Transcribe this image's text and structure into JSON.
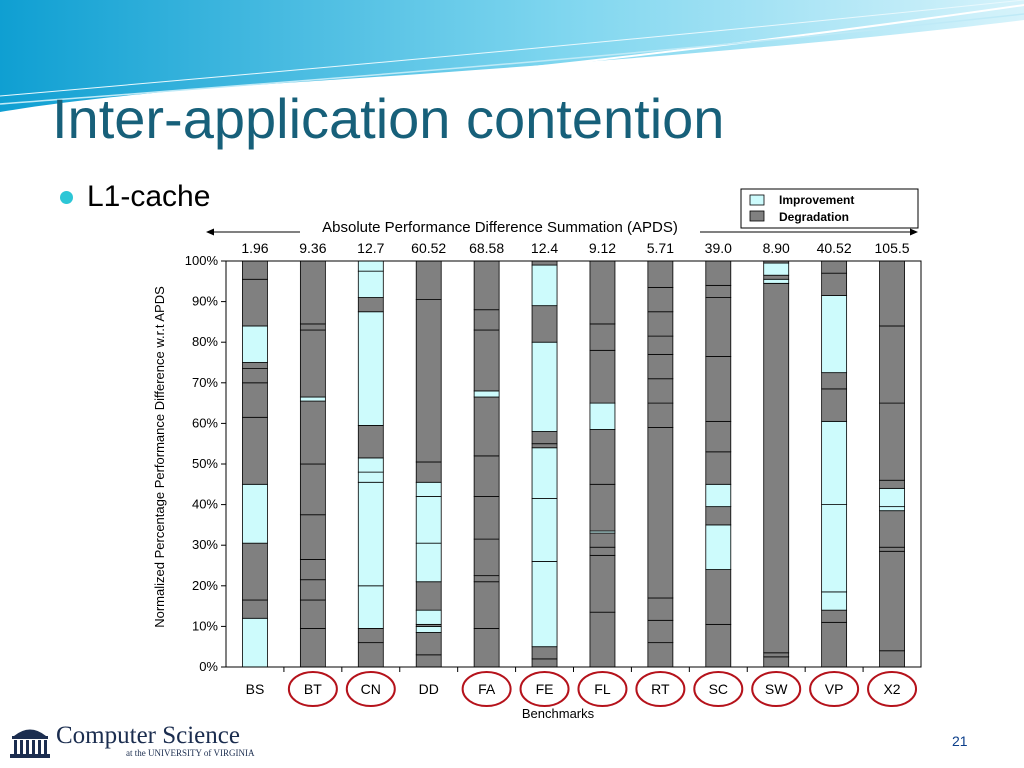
{
  "slide": {
    "title": "Inter-application contention",
    "bullet": "L1-cache",
    "page_number": "21",
    "logo": {
      "name": "Computer Science",
      "subtitle": "at the UNIVERSITY of VIRGINIA",
      "icon": "rotunda-icon"
    }
  },
  "colors": {
    "title": "#17607a",
    "bullet": "#2cc6d6",
    "improvement": "#cdfbfc",
    "degradation": "#808080",
    "circle": "#b5121b"
  },
  "chart_data": {
    "type": "bar",
    "stacked": true,
    "categories": [
      "BS",
      "BT",
      "CN",
      "DD",
      "FA",
      "FE",
      "FL",
      "RT",
      "SC",
      "SW",
      "VP",
      "X2"
    ],
    "circled_categories": [
      "BT",
      "CN",
      "FA",
      "FE",
      "FL",
      "RT",
      "SC",
      "SW",
      "VP",
      "X2"
    ],
    "xlabel": "Benchmarks",
    "ylabel": "Normalized Percentage  Performance Difference w.r.t APDS",
    "yticks": [
      "0%",
      "10%",
      "20%",
      "30%",
      "40%",
      "50%",
      "60%",
      "70%",
      "80%",
      "90%",
      "100%"
    ],
    "ylim": [
      0,
      100
    ],
    "apds_header": "Absolute Performance Difference Summation (APDS)",
    "apds_values": [
      "1.96",
      "9.36",
      "12.7",
      "60.52",
      "68.58",
      "12.4",
      "9.12",
      "5.71",
      "39.0",
      "8.90",
      "40.52",
      "105.5"
    ],
    "legend": [
      {
        "name": "Improvement",
        "color": "#cdfbfc"
      },
      {
        "name": "Degradation",
        "color": "#808080"
      }
    ],
    "legend_position": "top-right",
    "grid": false,
    "bars": [
      {
        "category": "BS",
        "segments": [
          [
            0,
            12,
            "Improvement"
          ],
          [
            12,
            16.5,
            "Degradation"
          ],
          [
            16.5,
            30.5,
            "Degradation"
          ],
          [
            30.5,
            45,
            "Improvement"
          ],
          [
            45,
            61.5,
            "Degradation"
          ],
          [
            61.5,
            70,
            "Degradation"
          ],
          [
            70,
            73.5,
            "Degradation"
          ],
          [
            73.5,
            75,
            "Degradation"
          ],
          [
            75,
            84,
            "Improvement"
          ],
          [
            84,
            95.5,
            "Degradation"
          ],
          [
            95.5,
            100,
            "Degradation"
          ]
        ]
      },
      {
        "category": "BT",
        "segments": [
          [
            0,
            9.5,
            "Degradation"
          ],
          [
            9.5,
            16.5,
            "Degradation"
          ],
          [
            16.5,
            21.5,
            "Degradation"
          ],
          [
            21.5,
            26.5,
            "Degradation"
          ],
          [
            26.5,
            37.5,
            "Degradation"
          ],
          [
            37.5,
            50,
            "Degradation"
          ],
          [
            50,
            65.5,
            "Degradation"
          ],
          [
            65.5,
            66.5,
            "Improvement"
          ],
          [
            66.5,
            83,
            "Degradation"
          ],
          [
            83,
            84.5,
            "Degradation"
          ],
          [
            84.5,
            100,
            "Degradation"
          ]
        ]
      },
      {
        "category": "CN",
        "segments": [
          [
            0,
            6,
            "Degradation"
          ],
          [
            6,
            9.5,
            "Degradation"
          ],
          [
            9.5,
            20,
            "Improvement"
          ],
          [
            20,
            45.5,
            "Improvement"
          ],
          [
            45.5,
            48,
            "Improvement"
          ],
          [
            48,
            51.5,
            "Improvement"
          ],
          [
            51.5,
            59.5,
            "Degradation"
          ],
          [
            59.5,
            87.5,
            "Improvement"
          ],
          [
            87.5,
            91,
            "Degradation"
          ],
          [
            91,
            97.5,
            "Improvement"
          ],
          [
            97.5,
            100,
            "Improvement"
          ]
        ]
      },
      {
        "category": "DD",
        "segments": [
          [
            0,
            3,
            "Degradation"
          ],
          [
            3,
            8.5,
            "Degradation"
          ],
          [
            8.5,
            10,
            "Improvement"
          ],
          [
            10,
            10.5,
            "Degradation"
          ],
          [
            10.5,
            14,
            "Improvement"
          ],
          [
            14,
            21,
            "Degradation"
          ],
          [
            21,
            30.5,
            "Improvement"
          ],
          [
            30.5,
            42,
            "Improvement"
          ],
          [
            42,
            45.5,
            "Improvement"
          ],
          [
            45.5,
            50.5,
            "Degradation"
          ],
          [
            50.5,
            90.5,
            "Degradation"
          ],
          [
            90.5,
            100,
            "Degradation"
          ]
        ]
      },
      {
        "category": "FA",
        "segments": [
          [
            0,
            9.5,
            "Degradation"
          ],
          [
            9.5,
            21,
            "Degradation"
          ],
          [
            21,
            22.5,
            "Degradation"
          ],
          [
            22.5,
            31.5,
            "Degradation"
          ],
          [
            31.5,
            42,
            "Degradation"
          ],
          [
            42,
            52,
            "Degradation"
          ],
          [
            52,
            66.5,
            "Degradation"
          ],
          [
            66.5,
            68,
            "Improvement"
          ],
          [
            68,
            83,
            "Degradation"
          ],
          [
            83,
            88,
            "Degradation"
          ],
          [
            88,
            100,
            "Degradation"
          ]
        ]
      },
      {
        "category": "FE",
        "segments": [
          [
            0,
            2,
            "Degradation"
          ],
          [
            2,
            5,
            "Degradation"
          ],
          [
            5,
            26,
            "Improvement"
          ],
          [
            26,
            41.5,
            "Improvement"
          ],
          [
            41.5,
            54,
            "Improvement"
          ],
          [
            54,
            55,
            "Degradation"
          ],
          [
            55,
            58,
            "Degradation"
          ],
          [
            58,
            80,
            "Improvement"
          ],
          [
            80,
            89,
            "Degradation"
          ],
          [
            89,
            99,
            "Improvement"
          ],
          [
            99,
            100,
            "Degradation"
          ]
        ]
      },
      {
        "category": "FL",
        "segments": [
          [
            0,
            13.5,
            "Degradation"
          ],
          [
            13.5,
            27.5,
            "Degradation"
          ],
          [
            27.5,
            29.5,
            "Degradation"
          ],
          [
            29.5,
            33,
            "Degradation"
          ],
          [
            33,
            33.5,
            "Improvement"
          ],
          [
            33.5,
            45,
            "Degradation"
          ],
          [
            45,
            58.5,
            "Degradation"
          ],
          [
            58.5,
            65,
            "Improvement"
          ],
          [
            65,
            78,
            "Degradation"
          ],
          [
            78,
            84.5,
            "Degradation"
          ],
          [
            84.5,
            100,
            "Degradation"
          ]
        ]
      },
      {
        "category": "RT",
        "segments": [
          [
            0,
            6,
            "Degradation"
          ],
          [
            6,
            11.5,
            "Degradation"
          ],
          [
            11.5,
            17,
            "Degradation"
          ],
          [
            17,
            59,
            "Degradation"
          ],
          [
            59,
            65,
            "Degradation"
          ],
          [
            65,
            71,
            "Degradation"
          ],
          [
            71,
            77,
            "Degradation"
          ],
          [
            77,
            81.5,
            "Degradation"
          ],
          [
            81.5,
            87.5,
            "Degradation"
          ],
          [
            87.5,
            93.5,
            "Degradation"
          ],
          [
            93.5,
            100,
            "Degradation"
          ]
        ]
      },
      {
        "category": "SC",
        "segments": [
          [
            0,
            10.5,
            "Degradation"
          ],
          [
            10.5,
            24,
            "Degradation"
          ],
          [
            24,
            35,
            "Improvement"
          ],
          [
            35,
            39.5,
            "Degradation"
          ],
          [
            39.5,
            45,
            "Improvement"
          ],
          [
            45,
            53,
            "Degradation"
          ],
          [
            53,
            60.5,
            "Degradation"
          ],
          [
            60.5,
            76.5,
            "Degradation"
          ],
          [
            76.5,
            91,
            "Degradation"
          ],
          [
            91,
            94,
            "Degradation"
          ],
          [
            94,
            100,
            "Degradation"
          ]
        ]
      },
      {
        "category": "SW",
        "segments": [
          [
            0,
            2.5,
            "Degradation"
          ],
          [
            2.5,
            3.5,
            "Degradation"
          ],
          [
            3.5,
            94.5,
            "Degradation"
          ],
          [
            94.5,
            95.5,
            "Improvement"
          ],
          [
            95.5,
            96.5,
            "Degradation"
          ],
          [
            96.5,
            99.5,
            "Improvement"
          ],
          [
            99.5,
            100,
            "Degradation"
          ]
        ]
      },
      {
        "category": "VP",
        "segments": [
          [
            0,
            11,
            "Degradation"
          ],
          [
            11,
            14,
            "Degradation"
          ],
          [
            14,
            18.5,
            "Improvement"
          ],
          [
            18.5,
            40,
            "Improvement"
          ],
          [
            40,
            60.5,
            "Improvement"
          ],
          [
            60.5,
            68.5,
            "Degradation"
          ],
          [
            68.5,
            72.5,
            "Degradation"
          ],
          [
            72.5,
            91.5,
            "Improvement"
          ],
          [
            91.5,
            97,
            "Degradation"
          ],
          [
            97,
            100,
            "Degradation"
          ]
        ]
      },
      {
        "category": "X2",
        "segments": [
          [
            0,
            4,
            "Degradation"
          ],
          [
            4,
            28.5,
            "Degradation"
          ],
          [
            28.5,
            29.5,
            "Degradation"
          ],
          [
            29.5,
            38.5,
            "Degradation"
          ],
          [
            38.5,
            39.5,
            "Improvement"
          ],
          [
            39.5,
            44,
            "Improvement"
          ],
          [
            44,
            46,
            "Degradation"
          ],
          [
            46,
            65,
            "Degradation"
          ],
          [
            65,
            84,
            "Degradation"
          ],
          [
            84,
            100,
            "Degradation"
          ]
        ]
      }
    ]
  }
}
